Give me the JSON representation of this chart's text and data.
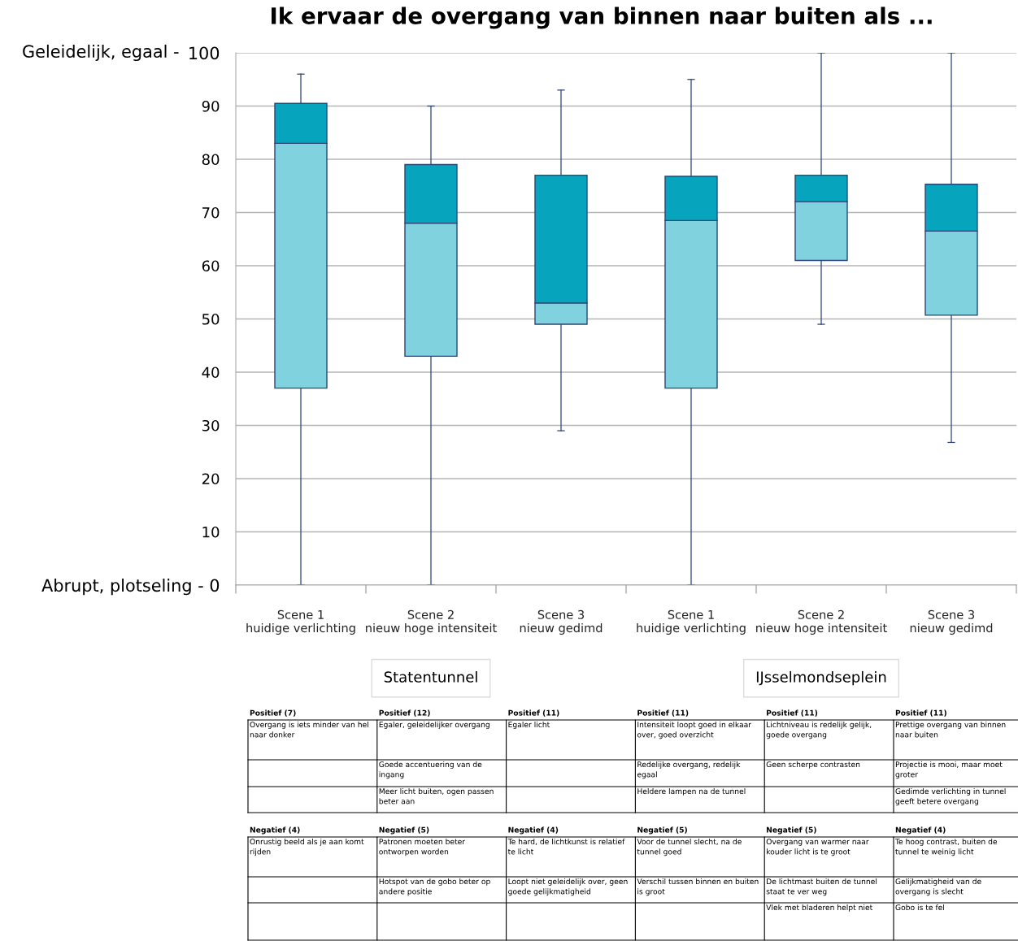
{
  "chart_data": {
    "type": "box",
    "title": "Ik ervaar de overgang van binnen naar buiten als ...",
    "categories": [
      "Scene 1\nhuidige verlichting",
      "Scene 2\nnieuw hoge intensiteit",
      "Scene 3\nnieuw gedimd",
      "Scene 1\nhuidige verlichting",
      "Scene 2\nnieuw hoge intensiteit",
      "Scene 3\nnieuw gedimd"
    ],
    "series": [
      {
        "color": "#80d2de",
        "boxes": [
          {
            "low": 0,
            "q1": 37,
            "median": 83,
            "q3": 90.5,
            "high": 96
          },
          {
            "low": 0,
            "q1": 43,
            "median": 68,
            "q3": 79,
            "high": 90
          },
          {
            "low": 29,
            "q1": 49,
            "median": 53,
            "q3": 77,
            "high": 93
          },
          {
            "low": 0,
            "q1": 37,
            "median": 68.5,
            "q3": 76.8,
            "high": 95
          },
          {
            "low": 49,
            "q1": 61,
            "median": 72,
            "q3": 77,
            "high": 100
          },
          {
            "low": 26.8,
            "q1": 50.7,
            "median": 66.5,
            "q3": 75.3,
            "high": 100
          }
        ]
      }
    ],
    "color": "#06a5bd",
    "ylim": [
      0,
      100
    ],
    "yticks": [
      {
        "value": 0,
        "label": "Abrupt, plotseling - 0"
      },
      10,
      20,
      30,
      40,
      50,
      60,
      70,
      80,
      90,
      {
        "value": 100,
        "label": "100"
      }
    ],
    "grid": "y",
    "annotations": [
      "Statentunnel",
      "IJsselmondseplein",
      "Geleidelijk, egaal -",
      "Positief (7)",
      "Positief (12)",
      "Positief (11)",
      "Positief (11)",
      "Positief (11)",
      "Positief (11)",
      "Overgang is iets minder van hel naar donker",
      "Egaler, geleidelijker overgang",
      "Egaler licht",
      "Intensiteit loopt goed in elkaar over, goed overzicht",
      "Lichtniveau is redelijk gelijk, goede overgang",
      "Prettige overgang van binnen naar buiten",
      null,
      "Goede accentuering van de ingang",
      null,
      "Redelijke overgang, redelijk egaal",
      "Geen scherpe contrasten",
      "Projectie is mooi, maar moet groter",
      null,
      "Meer licht buiten, ogen passen beter aan",
      null,
      "Heldere lampen na de tunnel",
      null,
      "Gedimde verlichting in tunnel geeft betere overgang",
      "Negatief (4)",
      "Negatief (5)",
      "Negatief (4)",
      "Negatief (5)",
      "Negatief (5)",
      "Negatief (4)",
      "Onrustig beeld als je aan komt rijden",
      "Patronen moeten beter ontworpen worden",
      "Te hard, de lichtkunst is relatief te licht",
      "Voor de tunnel slecht, na de tunnel goed",
      "Overgang van warmer naar kouder licht is te groot",
      "Te hoog contrast, buiten de tunnel te weinig licht",
      null,
      "Hotspot van de gobo beter op andere positie",
      "Loopt niet geleidelijk over, geen goede gelijkmatigheid",
      "Verschil tussen binnen en buiten is groot",
      "De lichtmast buiten de tunnel staat te ver weg",
      "Gelijkmatigheid van de overgang is slecht",
      null,
      null,
      null,
      null,
      "Vlek met bladeren helpt niet",
      "Gobo is te fel"
    ]
  }
}
